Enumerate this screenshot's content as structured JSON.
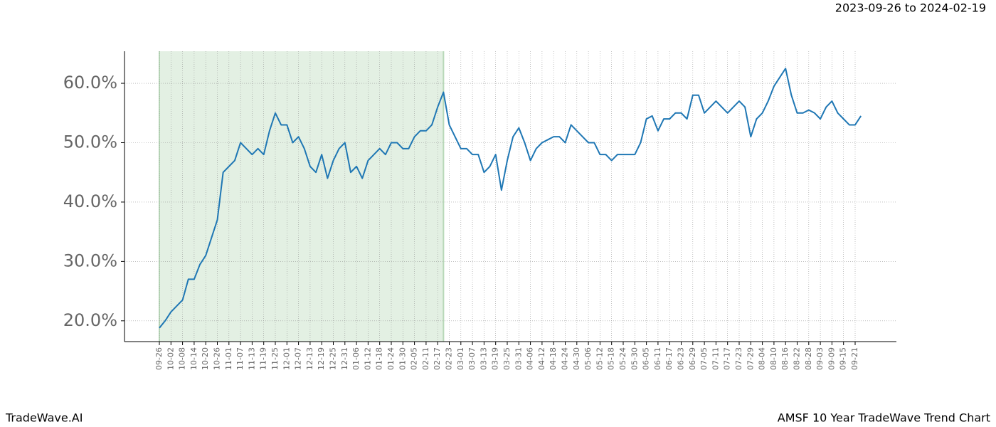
{
  "chart_data": {
    "type": "line",
    "title": "AMSF 10 Year TradeWave Trend Chart",
    "subtitle": "2023-09-26 to 2024-02-19",
    "brand": "TradeWave.AI",
    "categories": [
      "09-26",
      null,
      "10-02",
      null,
      "10-08",
      null,
      "10-14",
      null,
      "10-20",
      null,
      "10-26",
      null,
      "11-01",
      null,
      "11-07",
      null,
      "11-13",
      null,
      "11-19",
      null,
      "11-25",
      null,
      "12-01",
      null,
      "12-07",
      null,
      "12-13",
      null,
      "12-19",
      null,
      "12-25",
      null,
      "12-31",
      null,
      "01-06",
      null,
      "01-12",
      null,
      "01-18",
      null,
      "01-24",
      null,
      "01-30",
      null,
      "02-05",
      null,
      "02-11",
      null,
      "02-17",
      null,
      "02-23",
      null,
      "03-01",
      null,
      "03-07",
      null,
      "03-13",
      null,
      "03-19",
      null,
      "03-25",
      null,
      "03-31",
      null,
      "04-06",
      null,
      "04-12",
      null,
      "04-18",
      null,
      "04-24",
      null,
      "04-30",
      null,
      "05-06",
      null,
      "05-12",
      null,
      "05-18",
      null,
      "05-24",
      null,
      "05-30",
      null,
      "06-05",
      null,
      "06-11",
      null,
      "06-17",
      null,
      "06-23",
      null,
      "06-29",
      null,
      "07-05",
      null,
      "07-11",
      null,
      "07-17",
      null,
      "07-23",
      null,
      "07-29",
      null,
      "08-04",
      null,
      "08-10",
      null,
      "08-16",
      null,
      "08-22",
      null,
      "08-28",
      null,
      "09-03",
      null,
      "09-09",
      null,
      "09-15",
      null,
      "09-21",
      null
    ],
    "values": [
      18.8,
      20,
      21.5,
      22.5,
      23.5,
      27,
      27,
      29.5,
      31,
      34,
      37,
      45,
      46,
      47,
      50,
      49,
      48,
      49,
      48,
      52,
      55,
      53,
      53,
      50,
      51,
      49,
      46,
      45,
      48,
      44,
      47,
      49,
      50,
      45,
      46,
      44,
      47,
      48,
      49,
      48,
      50,
      50,
      49,
      49,
      51,
      52,
      52,
      53,
      56,
      58.5,
      53,
      51,
      49,
      49,
      48,
      48,
      45,
      46,
      48,
      42,
      47,
      51,
      52.5,
      50,
      47,
      49,
      50,
      50.5,
      51,
      51,
      50,
      53,
      52,
      51,
      50,
      50,
      48,
      48,
      47,
      48,
      48,
      48,
      48,
      50,
      54,
      54.5,
      52,
      54,
      54,
      55,
      55,
      54,
      58,
      58,
      55,
      56,
      57,
      56,
      55,
      56,
      57,
      56,
      51,
      54,
      55,
      57,
      59.5,
      61,
      62.5,
      58,
      55,
      55,
      55.5,
      55,
      54,
      56,
      57,
      55,
      54,
      53,
      53,
      54.5
    ],
    "color": "#1f77b4",
    "ylim": [
      16.5,
      65.4
    ],
    "yticks": [
      {
        "value": 20,
        "label": "20.0%"
      },
      {
        "value": 30,
        "label": "30.0%"
      },
      {
        "value": 40,
        "label": "40.0%"
      },
      {
        "value": 50,
        "label": "50.0%"
      },
      {
        "value": 60,
        "label": "60.0%"
      }
    ],
    "grid": true,
    "shade_range": [
      0,
      49
    ],
    "shade_color": "#e3f0e3"
  }
}
